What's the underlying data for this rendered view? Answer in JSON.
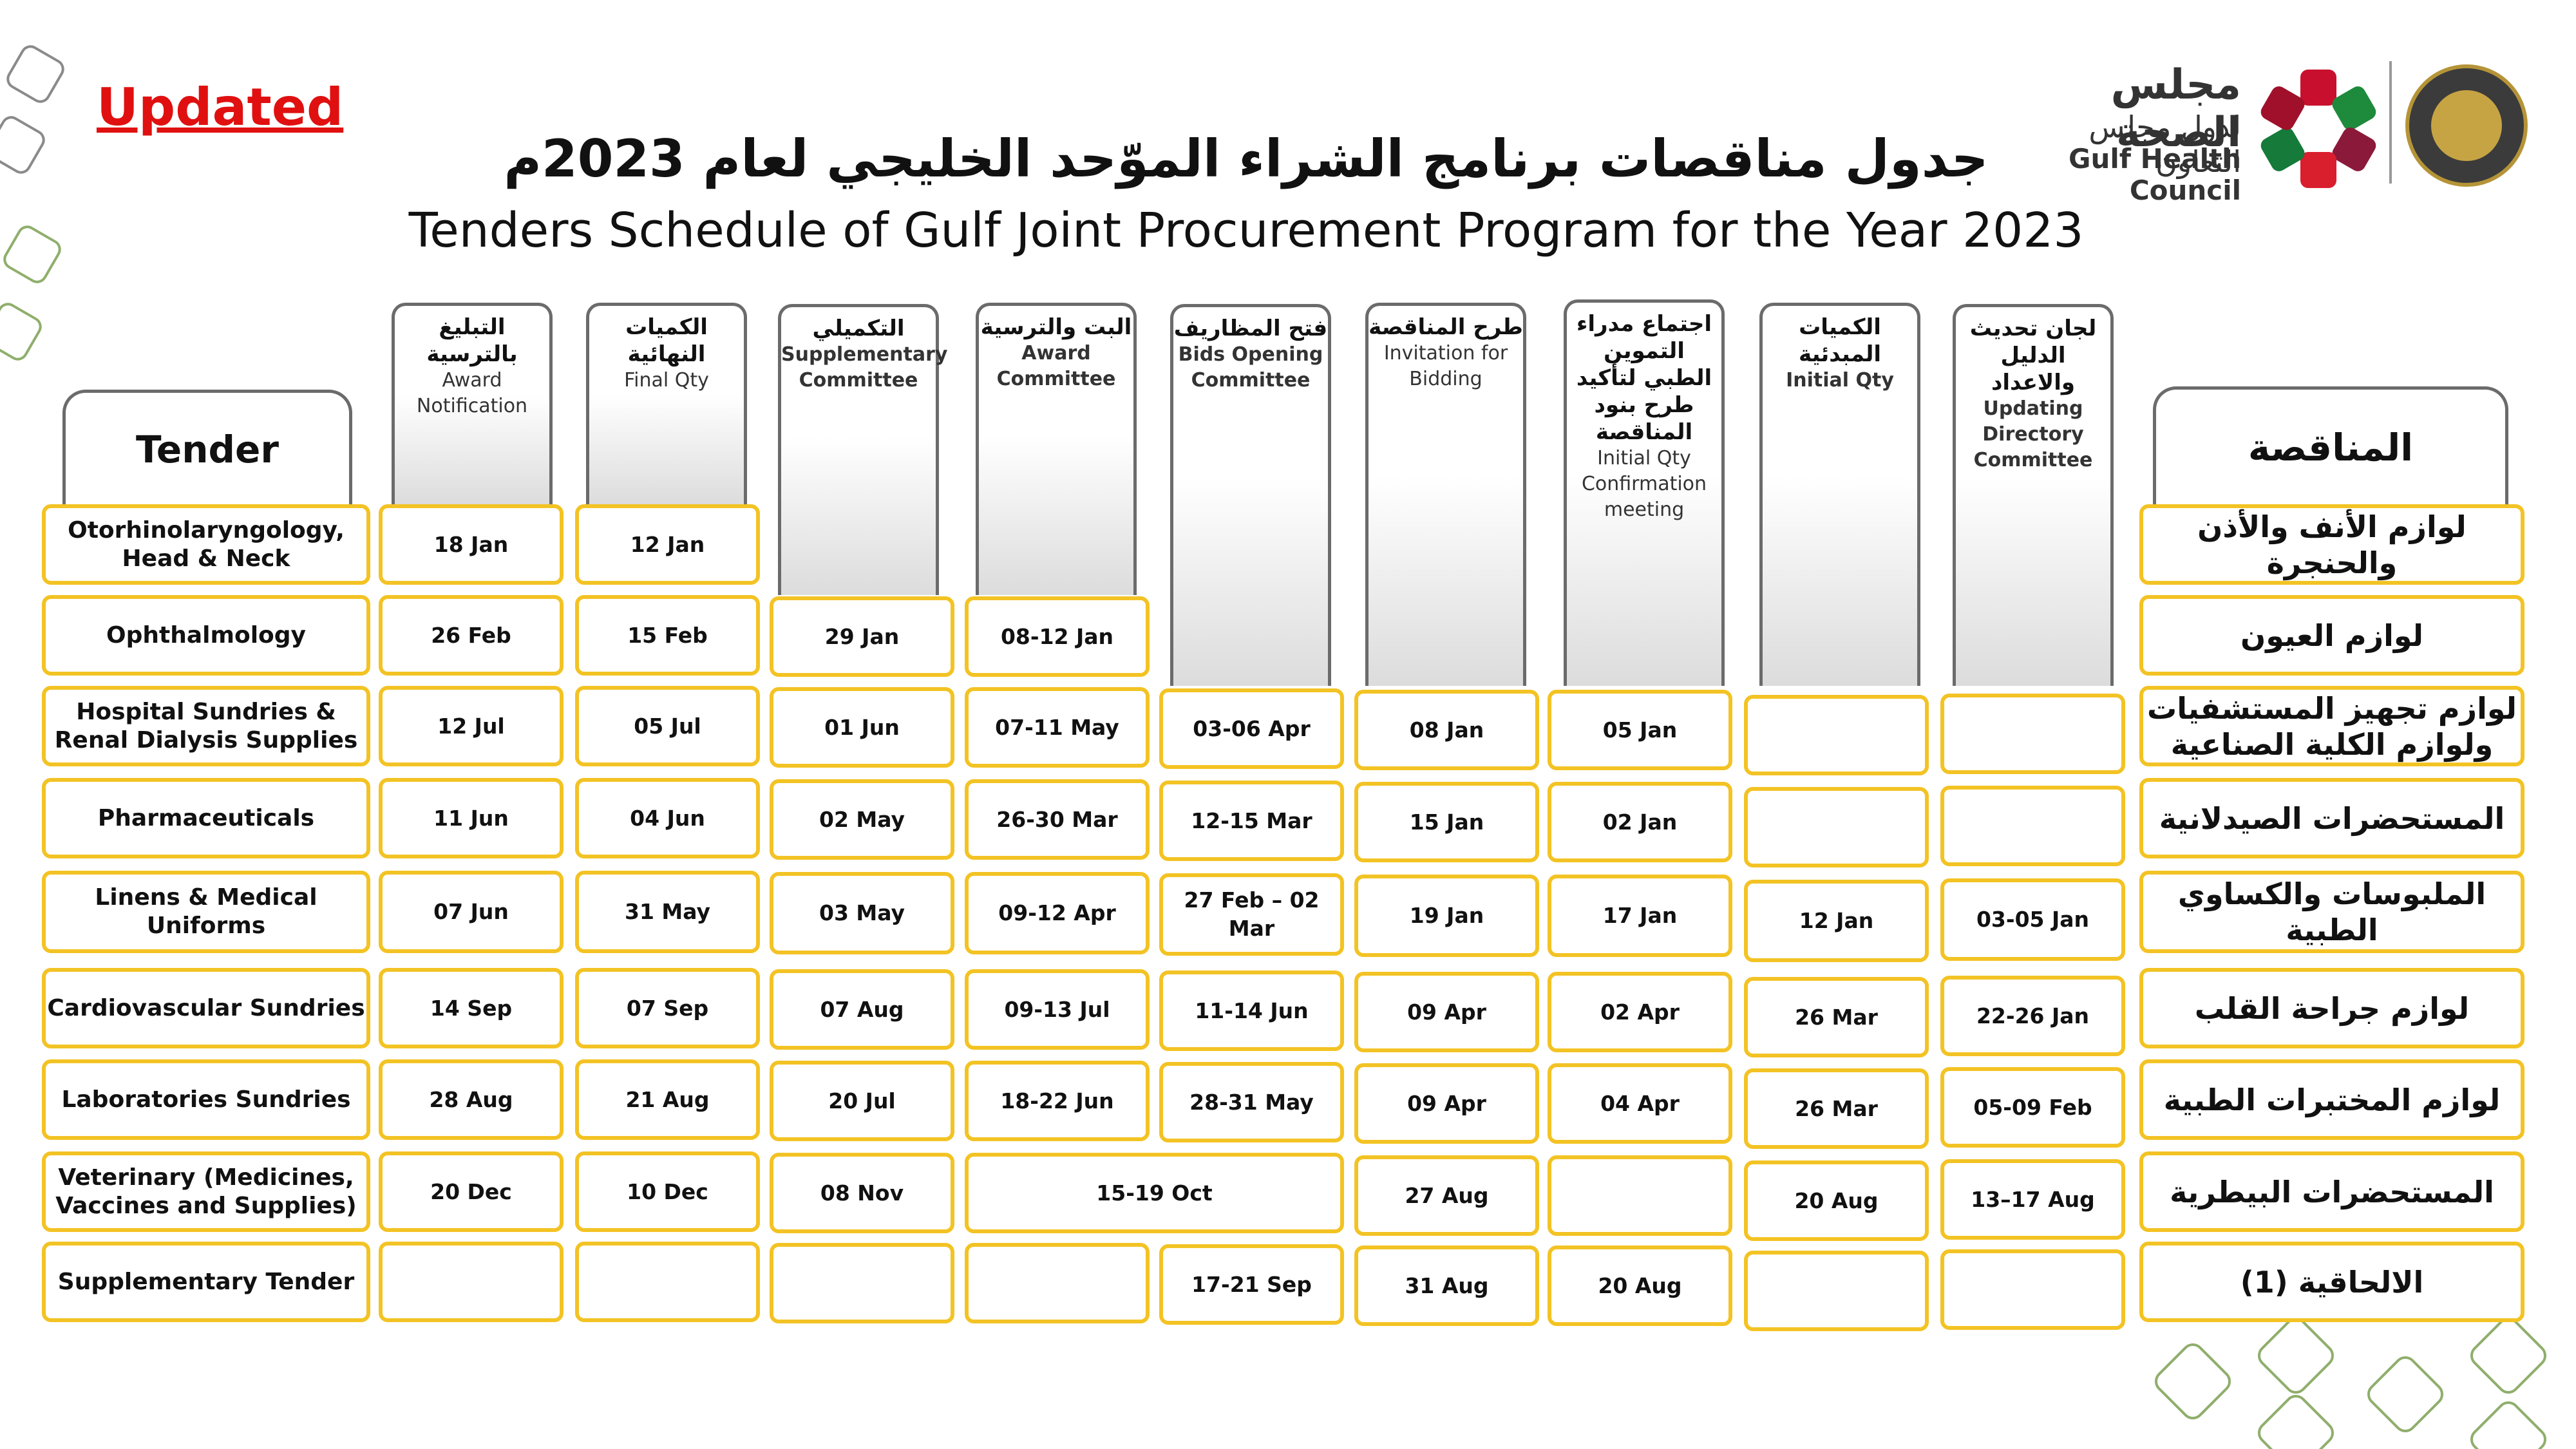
{
  "status_label": "Updated",
  "title_ar": "جدول مناقصات برنامج الشراء الموّحد الخليجي لعام 2023م",
  "title_en": "Tenders Schedule of Gulf Joint Procurement Program for the Year 2023",
  "logo": {
    "ar_line1": "مجلس الصحة",
    "ar_line2": "لدول مجلس التعاون",
    "en": "Gulf Health Council"
  },
  "left_header": "Tender",
  "right_header": "المناقصة",
  "stage_columns": [
    {
      "ar": "التبليغ بالترسية",
      "en": "Award Notification"
    },
    {
      "ar": "الكميات النهائية",
      "en": "Final Qty"
    },
    {
      "ar": "التكميلي",
      "en": "Supplementary Committee"
    },
    {
      "ar": "البت والترسية",
      "en": "Award Committee"
    },
    {
      "ar": "فتح المظاريف",
      "en": "Bids Opening Committee"
    },
    {
      "ar": "طرح المناقصة",
      "en": "Invitation for Bidding"
    },
    {
      "ar": "اجتماع مدراء التموين الطبي لتأكيد طرح بنود المناقصة",
      "en": "Initial Qty Confirmation meeting"
    },
    {
      "ar": "الكميات المبدئية",
      "en": "Initial Qty"
    },
    {
      "ar": "لجان تحديث الدليل والاعداد",
      "en": "Updating Directory Committee"
    }
  ],
  "rows": [
    {
      "en": "Otorhinolaryngology, Head & Neck",
      "ar": "لوازم الأنف والأذن والحنجرة",
      "values": [
        "18 Jan",
        "12 Jan",
        null,
        null,
        null,
        null,
        null,
        null,
        null
      ]
    },
    {
      "en": "Ophthalmology",
      "ar": "لوازم العيون",
      "values": [
        "26 Feb",
        "15 Feb",
        "29 Jan",
        "08-12 Jan",
        null,
        null,
        null,
        null,
        null
      ]
    },
    {
      "en": "Hospital Sundries & Renal Dialysis Supplies",
      "ar": "لوازم تجهيز المستشفيات ولوازم الكلية الصناعية",
      "values": [
        "12 Jul",
        "05 Jul",
        "01 Jun",
        "07-11 May",
        "03-06 Apr",
        "08 Jan",
        "05 Jan",
        "",
        ""
      ]
    },
    {
      "en": "Pharmaceuticals",
      "ar": "المستحضرات الصيدلانية",
      "values": [
        "11 Jun",
        "04 Jun",
        "02 May",
        "26-30 Mar",
        "12-15 Mar",
        "15 Jan",
        "02 Jan",
        "",
        ""
      ]
    },
    {
      "en": "Linens & Medical Uniforms",
      "ar": "الملبوسات والكساوي الطبية",
      "values": [
        "07 Jun",
        "31 May",
        "03 May",
        "09-12 Apr",
        "27 Feb – 02 Mar",
        "19 Jan",
        "17 Jan",
        "12 Jan",
        "03-05 Jan"
      ]
    },
    {
      "en": "Cardiovascular Sundries",
      "ar": "لوازم جراحة القلب",
      "values": [
        "14 Sep",
        "07 Sep",
        "07 Aug",
        "09-13 Jul",
        "11-14 Jun",
        "09 Apr",
        "02 Apr",
        "26 Mar",
        "22-26 Jan"
      ]
    },
    {
      "en": "Laboratories Sundries",
      "ar": "لوازم المختبرات الطبية",
      "values": [
        "28 Aug",
        "21 Aug",
        "20 Jul",
        "18-22 Jun",
        "28-31 May",
        "09 Apr",
        "04 Apr",
        "26 Mar",
        "05-09 Feb"
      ]
    },
    {
      "en": "Veterinary (Medicines, Vaccines and Supplies)",
      "ar": "المستحضرات البيطرية",
      "values": [
        "20 Dec",
        "10 Dec",
        "08 Nov",
        "15-19 Oct",
        "__merged__",
        "27 Aug",
        "",
        "20 Aug",
        "13–17 Aug"
      ]
    },
    {
      "en": "Supplementary Tender",
      "ar": "الالحاقية (1)",
      "values": [
        "",
        "",
        "",
        "",
        "17-21 Sep",
        "31 Aug",
        "20 Aug",
        "",
        ""
      ]
    }
  ]
}
